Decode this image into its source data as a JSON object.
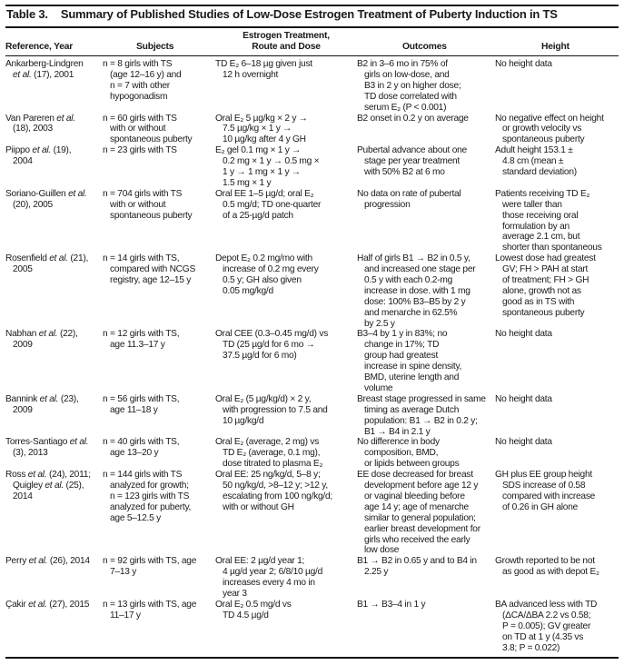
{
  "title": {
    "number": "Table 3.",
    "text": "Summary of Published Studies of Low-Dose Estrogen Treatment of Puberty Induction in TS"
  },
  "headers": [
    "Reference, Year",
    "Subjects",
    "Estrogen Treatment,\nRoute and Dose",
    "Outcomes",
    "Height"
  ],
  "rows": [
    {
      "ref": [
        "Ankarberg-Lindgren",
        "et al. (17), 2001"
      ],
      "subjects": [
        "n = 8 girls with TS",
        "(age 12–16 y) and",
        "n = 7 with other",
        "hypogonadism"
      ],
      "treatment": [
        "TD E₂ 6–18 µg given just",
        "12 h overnight"
      ],
      "outcomes": [
        "B2 in 3–6 mo in 75% of",
        "girls on low-dose, and",
        "B3 in 2 y on higher dose;",
        "TD dose correlated with",
        "serum E₂ (P < 0.001)"
      ],
      "height": [
        "No height data"
      ]
    },
    {
      "ref": [
        "Van Pareren et al.",
        "(18), 2003"
      ],
      "subjects": [
        "n = 60 girls with TS",
        "with or without",
        "spontaneous puberty"
      ],
      "treatment": [
        "Oral E₂ 5 µg/kg × 2 y →",
        "7.5 µg/kg × 1 y →",
        "10 µg/kg after 4 y GH"
      ],
      "outcomes": [
        "B2 onset in 0.2 y on average"
      ],
      "height": [
        "No negative effect on height",
        "or growth velocity vs",
        "spontaneous puberty"
      ]
    },
    {
      "ref": [
        "Piippo et al. (19),",
        "2004"
      ],
      "subjects": [
        "n = 23 girls with TS"
      ],
      "treatment": [
        "E₂ gel 0.1 mg × 1 y →",
        "0.2 mg × 1 y → 0.5 mg ×",
        "1 y → 1 mg × 1 y →",
        "1.5 mg × 1 y"
      ],
      "outcomes": [
        "Pubertal advance about one",
        "stage per year treatment",
        "with 50% B2 at 6 mo"
      ],
      "height": [
        "Adult height 153.1 ±",
        "4.8 cm (mean ±",
        "standard deviation)"
      ]
    },
    {
      "ref": [
        "Soriano-Guillen et al.",
        "(20), 2005"
      ],
      "subjects": [
        "n = 704 girls with TS",
        "with or without",
        "spontaneous puberty"
      ],
      "treatment": [
        "Oral EE 1–5 µg/d; oral E₂",
        "0.5 mg/d; TD one-quarter",
        "of a 25-µg/d patch"
      ],
      "outcomes": [
        "No data on rate of pubertal",
        "progression"
      ],
      "height": [
        "Patients receiving TD E₂",
        "were taller than",
        "those receiving oral",
        "formulation by an",
        "average 2.1 cm, but",
        "shorter than spontaneous"
      ]
    },
    {
      "ref": [
        "Rosenfield et al. (21),",
        "2005"
      ],
      "subjects": [
        "n = 14 girls with TS,",
        "compared with NCGS",
        "registry, age 12–15 y"
      ],
      "treatment": [
        "Depot E₂ 0.2 mg/mo with",
        "increase of 0.2 mg every",
        "0.5 y; GH also given",
        "0.05 mg/kg/d"
      ],
      "outcomes": [
        "Half of girls B1 → B2 in 0.5 y,",
        "and increased one stage per",
        "0.5 y with each 0.2-mg",
        "increase in dose. with 1 mg",
        "dose: 100% B3–B5 by 2 y",
        "and menarche in 62.5%",
        "by 2.5 y"
      ],
      "height": [
        "Lowest dose had greatest",
        "GV; FH > PAH at start",
        "of treatment; FH > GH",
        "alone, growth not as",
        "good as in TS with",
        "spontaneous puberty"
      ]
    },
    {
      "ref": [
        "Nabhan et al. (22),",
        "2009"
      ],
      "subjects": [
        "n = 12 girls with TS,",
        "age 11.3–17 y"
      ],
      "treatment": [
        "Oral CEE (0.3–0.45 mg/d) vs",
        "TD (25 µg/d for 6 mo →",
        "37.5 µg/d for 6 mo)"
      ],
      "outcomes": [
        "B3–4 by 1 y in 83%; no",
        "change in 17%; TD",
        "group had greatest",
        "increase in spine density,",
        "BMD, uterine length and",
        "volume"
      ],
      "height": [
        "No height data"
      ]
    },
    {
      "ref": [
        "Bannink et al. (23),",
        "2009"
      ],
      "subjects": [
        "n = 56 girls with TS,",
        "age 11–18 y"
      ],
      "treatment": [
        "Oral E₂ (5 µg/kg/d) × 2 y,",
        "with progression to 7.5 and",
        "10 µg/kg/d"
      ],
      "outcomes": [
        "Breast stage progressed in same",
        "timing as average Dutch",
        "population: B1 → B2 in 0.2 y;",
        "B1 → B4 in 2.1 y"
      ],
      "height": [
        "No height data"
      ]
    },
    {
      "ref": [
        "Torres-Santiago et al.",
        "(3), 2013"
      ],
      "subjects": [
        "n = 40 girls with TS,",
        "age 13–20 y"
      ],
      "treatment": [
        "Oral E₂ (average, 2 mg) vs",
        "TD E₂ (average, 0.1 mg),",
        "dose titrated to plasma E₂"
      ],
      "outcomes": [
        "No difference in body",
        "composition, BMD,",
        "or lipids between groups"
      ],
      "height": [
        "No height data"
      ]
    },
    {
      "ref": [
        "Ross et al. (24), 2011;",
        "Quigley et al. (25),",
        "2014"
      ],
      "subjects": [
        "n = 144 girls with TS",
        "analyzed for growth;",
        "n = 123 girls with TS",
        "analyzed for puberty,",
        "age 5–12.5 y"
      ],
      "treatment": [
        "Oral EE: 25 ng/kg/d, 5–8 y;",
        "50 ng/kg/d, >8–12 y; >12 y,",
        "escalating from 100 ng/kg/d;",
        "with or without GH"
      ],
      "outcomes": [
        "EE dose decreased for breast",
        "development before age 12 y",
        "or vaginal bleeding before",
        "age 14 y; age of menarche",
        "similar to general population;",
        "earlier breast development for",
        "girls who received the early",
        "low dose"
      ],
      "height": [
        "GH plus EE group height",
        "SDS increase of 0.58",
        "compared with increase",
        "of 0.26 in GH alone"
      ]
    },
    {
      "ref": [
        "Perry et al. (26), 2014"
      ],
      "subjects": [
        "n = 92 girls with TS, age",
        "7–13 y"
      ],
      "treatment": [
        "Oral EE: 2 µg/d year 1;",
        "4 µg/d year 2; 6/8/10 µg/d",
        "increases every 4 mo in",
        "year 3"
      ],
      "outcomes": [
        "B1 → B2 in 0.65 y and to B4 in",
        "2.25 y"
      ],
      "height": [
        "Growth reported to be not",
        "as good as with depot E₂"
      ]
    },
    {
      "ref": [
        "Çakir et al. (27), 2015"
      ],
      "subjects": [
        "n = 13 girls with TS, age",
        "11–17 y"
      ],
      "treatment": [
        "Oral E₂ 0.5 mg/d vs",
        "TD 4.5 µg/d"
      ],
      "outcomes": [
        "B1 → B3–4 in 1 y"
      ],
      "height": [
        "BA advanced less with TD",
        "(ΔCA/ΔBA 2.2 vs 0.58;",
        "P = 0.005); GV greater",
        "on TD at 1 y (4.35 vs",
        "3.8; P = 0.022)"
      ]
    }
  ]
}
